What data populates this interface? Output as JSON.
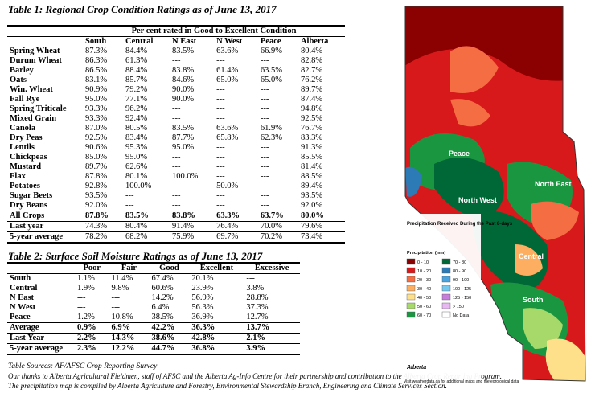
{
  "table1": {
    "title": "Table 1: Regional Crop Condition Ratings as of June 13, 2017",
    "header_span": "Per cent rated in Good to Excellent Condition",
    "columns": [
      "South",
      "Central",
      "N East",
      "N West",
      "Peace",
      "Alberta"
    ],
    "rows": [
      {
        "crop": "Spring Wheat",
        "v": [
          "87.3%",
          "84.4%",
          "83.5%",
          "63.6%",
          "66.9%",
          "80.4%"
        ]
      },
      {
        "crop": "Durum Wheat",
        "v": [
          "86.3%",
          "61.3%",
          "---",
          "---",
          "---",
          "82.8%"
        ]
      },
      {
        "crop": "Barley",
        "v": [
          "86.5%",
          "88.4%",
          "83.8%",
          "61.4%",
          "63.5%",
          "82.7%"
        ]
      },
      {
        "crop": "Oats",
        "v": [
          "83.1%",
          "85.7%",
          "84.6%",
          "65.0%",
          "65.0%",
          "76.2%"
        ]
      },
      {
        "crop": "Win. Wheat",
        "v": [
          "90.9%",
          "79.2%",
          "90.0%",
          "---",
          "---",
          "89.7%"
        ]
      },
      {
        "crop": "Fall Rye",
        "v": [
          "95.0%",
          "77.1%",
          "90.0%",
          "---",
          "---",
          "87.4%"
        ]
      },
      {
        "crop": "Spring Triticale",
        "v": [
          "93.3%",
          "96.2%",
          "---",
          "---",
          "---",
          "94.8%"
        ]
      },
      {
        "crop": "Mixed Grain",
        "v": [
          "93.3%",
          "92.4%",
          "---",
          "---",
          "---",
          "92.5%"
        ]
      },
      {
        "crop": "Canola",
        "v": [
          "87.0%",
          "80.5%",
          "83.5%",
          "63.6%",
          "61.9%",
          "76.7%"
        ]
      },
      {
        "crop": "Dry Peas",
        "v": [
          "92.5%",
          "83.4%",
          "87.7%",
          "65.8%",
          "62.3%",
          "83.3%"
        ]
      },
      {
        "crop": "Lentils",
        "v": [
          "90.6%",
          "95.3%",
          "95.0%",
          "---",
          "---",
          "91.3%"
        ]
      },
      {
        "crop": "Chickpeas",
        "v": [
          "85.0%",
          "95.0%",
          "---",
          "---",
          "---",
          "85.5%"
        ]
      },
      {
        "crop": "Mustard",
        "v": [
          "89.7%",
          "62.6%",
          "---",
          "---",
          "---",
          "81.4%"
        ]
      },
      {
        "crop": "Flax",
        "v": [
          "87.8%",
          "80.1%",
          "100.0%",
          "---",
          "---",
          "88.5%"
        ]
      },
      {
        "crop": "Potatoes",
        "v": [
          "92.8%",
          "100.0%",
          "---",
          "50.0%",
          "---",
          "89.4%"
        ]
      },
      {
        "crop": "Sugar Beets",
        "v": [
          "93.5%",
          "---",
          "---",
          "---",
          "---",
          "93.5%"
        ]
      },
      {
        "crop": "Dry Beans",
        "v": [
          "92.0%",
          "---",
          "---",
          "---",
          "---",
          "92.0%"
        ]
      }
    ],
    "totals": [
      {
        "label": "All Crops",
        "v": [
          "87.8%",
          "83.5%",
          "83.8%",
          "63.3%",
          "63.7%",
          "80.0%"
        ]
      },
      {
        "label": "Last year",
        "v": [
          "74.3%",
          "80.4%",
          "91.4%",
          "76.4%",
          "70.0%",
          "79.6%"
        ]
      },
      {
        "label": "5-year average",
        "v": [
          "78.2%",
          "68.2%",
          "75.9%",
          "69.7%",
          "70.2%",
          "73.4%"
        ]
      }
    ]
  },
  "table2": {
    "title": "Table 2: Surface Soil Moisture Ratings as of June 13, 2017",
    "columns": [
      "Poor",
      "Fair",
      "Good",
      "Excellent",
      "Excessive"
    ],
    "rows": [
      {
        "region": "South",
        "v": [
          "1.1%",
          "11.4%",
          "67.4%",
          "20.1%",
          "---"
        ]
      },
      {
        "region": "Central",
        "v": [
          "1.9%",
          "9.8%",
          "60.6%",
          "23.9%",
          "3.8%"
        ]
      },
      {
        "region": "N East",
        "v": [
          "---",
          "---",
          "14.2%",
          "56.9%",
          "28.8%"
        ]
      },
      {
        "region": "N West",
        "v": [
          "---",
          "---",
          "6.4%",
          "56.3%",
          "37.3%"
        ]
      },
      {
        "region": "Peace",
        "v": [
          "1.2%",
          "10.8%",
          "38.5%",
          "36.9%",
          "12.7%"
        ]
      }
    ],
    "totals": [
      {
        "label": "Average",
        "v": [
          "0.9%",
          "6.9%",
          "42.2%",
          "36.3%",
          "13.7%"
        ]
      },
      {
        "label": "Last Year",
        "v": [
          "2.2%",
          "14.3%",
          "38.6%",
          "42.8%",
          "2.1%"
        ]
      },
      {
        "label": "5-year average",
        "v": [
          "2.3%",
          "12.2%",
          "44.7%",
          "36.8%",
          "3.9%"
        ]
      }
    ]
  },
  "source": "Table Sources: AF/AFSC Crop Reporting Survey",
  "note1": "Our thanks to Alberta Agricultural Fieldmen, staff of AFSC and the Alberta Ag-Info Centre for their partnership and contribution to the Alberta Crop Reporting Program.",
  "note2": "The precipitation map is compiled by Alberta Agriculture and Forestry, Environmental Stewardship Branch, Engineering and Climate Services Section.",
  "map": {
    "regions": [
      "Peace",
      "North East",
      "North West",
      "Central",
      "South"
    ],
    "caption": "Precipitation Received During the Past 8-days",
    "legend_title": "Precipitation (mm)",
    "legend": [
      {
        "label": "0 - 10",
        "color": "#8b0000"
      },
      {
        "label": "10 - 20",
        "color": "#d7191c"
      },
      {
        "label": "20 - 30",
        "color": "#f46d43"
      },
      {
        "label": "30 - 40",
        "color": "#fdae61"
      },
      {
        "label": "40 - 50",
        "color": "#fee08b"
      },
      {
        "label": "50 - 60",
        "color": "#a6d96a"
      },
      {
        "label": "60 - 70",
        "color": "#1a9641"
      },
      {
        "label": "70 - 80",
        "color": "#006837"
      },
      {
        "label": "80 - 90",
        "color": "#2c7bb6"
      },
      {
        "label": "90 - 100",
        "color": "#4aa3df"
      },
      {
        "label": "100 - 125",
        "color": "#74c8f0"
      },
      {
        "label": "125 - 150",
        "color": "#c77ddb"
      },
      {
        "label": "> 150",
        "color": "#e7b8f2"
      },
      {
        "label": "No Data",
        "color": "#ffffff"
      }
    ],
    "footer": "Visit weatherdata.ca for additional maps and meteorological data",
    "logo": "Alberta"
  }
}
